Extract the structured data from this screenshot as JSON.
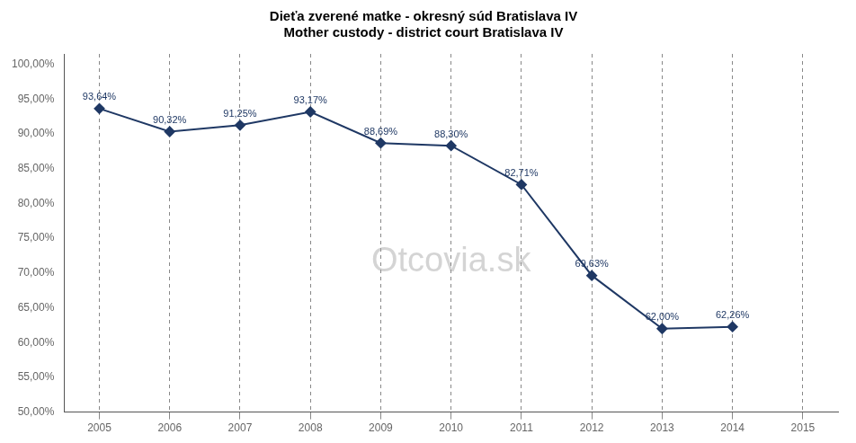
{
  "chart_data": {
    "type": "line",
    "title": "Dieťa zverené matke - okresný súd Bratislava IV\nMother custody - district court Bratislava IV",
    "x": [
      2005,
      2006,
      2007,
      2008,
      2009,
      2010,
      2011,
      2012,
      2013,
      2014
    ],
    "values": [
      93.64,
      90.32,
      91.25,
      93.17,
      88.69,
      88.3,
      82.71,
      69.63,
      62.0,
      62.26
    ],
    "value_labels": [
      "93,64%",
      "90,32%",
      "91,25%",
      "93,17%",
      "88,69%",
      "88,30%",
      "82,71%",
      "69,63%",
      "62,00%",
      "62,26%"
    ],
    "data_labels": true,
    "color": "#1F3864",
    "marker": "diamond",
    "xlim": [
      2004.5,
      2015.5
    ],
    "xticks": [
      2005,
      2006,
      2007,
      2008,
      2009,
      2010,
      2011,
      2012,
      2013,
      2014,
      2015
    ],
    "ylim": [
      50.0,
      101.5
    ],
    "yticks": [
      {
        "value": 50.0,
        "label": "50,00%"
      },
      {
        "value": 55.0,
        "label": "55,00%"
      },
      {
        "value": 60.0,
        "label": "60,00%"
      },
      {
        "value": 65.0,
        "label": "65,00%"
      },
      {
        "value": 70.0,
        "label": "70,00%"
      },
      {
        "value": 75.0,
        "label": "75,00%"
      },
      {
        "value": 80.0,
        "label": "80,00%"
      },
      {
        "value": 85.0,
        "label": "85,00%"
      },
      {
        "value": 90.0,
        "label": "90,00%"
      },
      {
        "value": 95.0,
        "label": "95,00%"
      },
      {
        "value": 100.0,
        "label": "100,00%"
      }
    ],
    "grid": "x",
    "annotations": [
      "Otcovia.sk"
    ]
  }
}
